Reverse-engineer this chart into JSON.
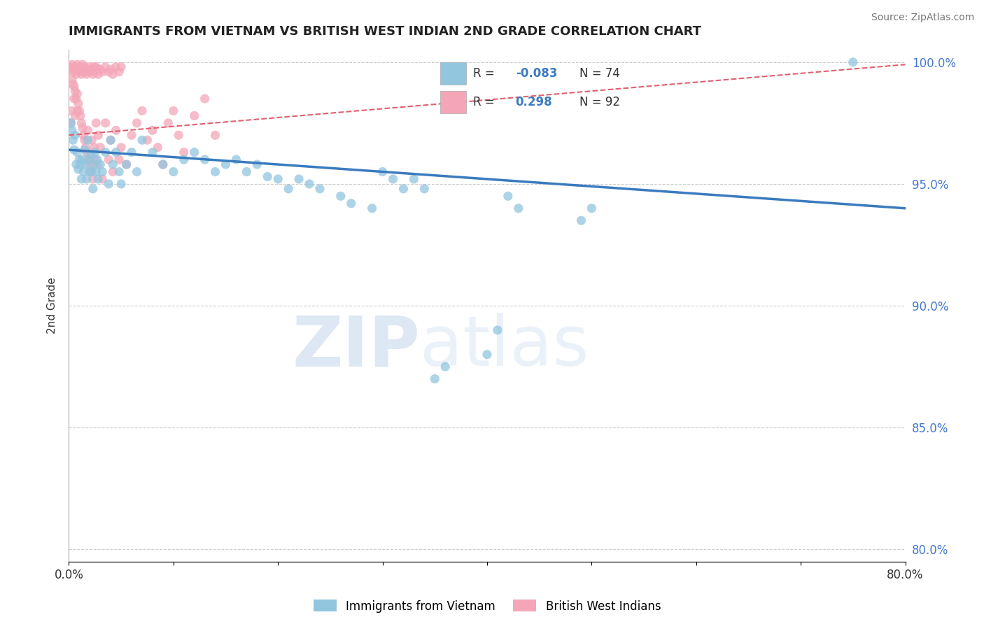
{
  "title": "IMMIGRANTS FROM VIETNAM VS BRITISH WEST INDIAN 2ND GRADE CORRELATION CHART",
  "source_text": "Source: ZipAtlas.com",
  "ylabel": "2nd Grade",
  "xlim": [
    0.0,
    0.8
  ],
  "ylim": [
    0.795,
    1.005
  ],
  "xticks": [
    0.0,
    0.1,
    0.2,
    0.3,
    0.4,
    0.5,
    0.6,
    0.7,
    0.8
  ],
  "yticks": [
    0.8,
    0.85,
    0.9,
    0.95,
    1.0
  ],
  "yticklabels": [
    "80.0%",
    "85.0%",
    "90.0%",
    "95.0%",
    "100.0%"
  ],
  "R_vietnam": -0.083,
  "N_vietnam": 74,
  "R_bwi": 0.298,
  "N_bwi": 92,
  "blue_color": "#92c5de",
  "pink_color": "#f4a6b8",
  "blue_line_color": "#3a7bbf",
  "pink_line_color": "#e06070",
  "legend_label_vietnam": "Immigrants from Vietnam",
  "legend_label_bwi": "British West Indians",
  "watermark_zip": "ZIP",
  "watermark_atlas": "atlas",
  "vietnam_scatter": [
    [
      0.002,
      0.975
    ],
    [
      0.003,
      0.972
    ],
    [
      0.004,
      0.968
    ],
    [
      0.005,
      0.964
    ],
    [
      0.006,
      0.97
    ],
    [
      0.007,
      0.958
    ],
    [
      0.008,
      0.963
    ],
    [
      0.009,
      0.956
    ],
    [
      0.01,
      0.96
    ],
    [
      0.011,
      0.958
    ],
    [
      0.012,
      0.952
    ],
    [
      0.013,
      0.96
    ],
    [
      0.014,
      0.955
    ],
    [
      0.015,
      0.964
    ],
    [
      0.016,
      0.958
    ],
    [
      0.017,
      0.952
    ],
    [
      0.018,
      0.968
    ],
    [
      0.019,
      0.96
    ],
    [
      0.02,
      0.955
    ],
    [
      0.021,
      0.962
    ],
    [
      0.022,
      0.955
    ],
    [
      0.023,
      0.948
    ],
    [
      0.024,
      0.958
    ],
    [
      0.025,
      0.963
    ],
    [
      0.026,
      0.955
    ],
    [
      0.027,
      0.96
    ],
    [
      0.028,
      0.952
    ],
    [
      0.03,
      0.958
    ],
    [
      0.032,
      0.955
    ],
    [
      0.035,
      0.963
    ],
    [
      0.038,
      0.95
    ],
    [
      0.04,
      0.968
    ],
    [
      0.042,
      0.958
    ],
    [
      0.045,
      0.963
    ],
    [
      0.048,
      0.955
    ],
    [
      0.05,
      0.95
    ],
    [
      0.055,
      0.958
    ],
    [
      0.06,
      0.963
    ],
    [
      0.065,
      0.955
    ],
    [
      0.07,
      0.968
    ],
    [
      0.08,
      0.963
    ],
    [
      0.09,
      0.958
    ],
    [
      0.1,
      0.955
    ],
    [
      0.11,
      0.96
    ],
    [
      0.12,
      0.963
    ],
    [
      0.13,
      0.96
    ],
    [
      0.14,
      0.955
    ],
    [
      0.15,
      0.958
    ],
    [
      0.16,
      0.96
    ],
    [
      0.17,
      0.955
    ],
    [
      0.18,
      0.958
    ],
    [
      0.19,
      0.953
    ],
    [
      0.2,
      0.952
    ],
    [
      0.21,
      0.948
    ],
    [
      0.22,
      0.952
    ],
    [
      0.23,
      0.95
    ],
    [
      0.24,
      0.948
    ],
    [
      0.26,
      0.945
    ],
    [
      0.27,
      0.942
    ],
    [
      0.29,
      0.94
    ],
    [
      0.3,
      0.955
    ],
    [
      0.31,
      0.952
    ],
    [
      0.32,
      0.948
    ],
    [
      0.33,
      0.952
    ],
    [
      0.34,
      0.948
    ],
    [
      0.35,
      0.87
    ],
    [
      0.36,
      0.875
    ],
    [
      0.4,
      0.88
    ],
    [
      0.41,
      0.89
    ],
    [
      0.42,
      0.945
    ],
    [
      0.43,
      0.94
    ],
    [
      0.49,
      0.935
    ],
    [
      0.5,
      0.94
    ],
    [
      0.75,
      1.0
    ]
  ],
  "bwi_scatter": [
    [
      0.001,
      0.998
    ],
    [
      0.002,
      0.997
    ],
    [
      0.003,
      0.999
    ],
    [
      0.004,
      0.996
    ],
    [
      0.005,
      0.998
    ],
    [
      0.006,
      0.997
    ],
    [
      0.007,
      0.995
    ],
    [
      0.008,
      0.999
    ],
    [
      0.009,
      0.996
    ],
    [
      0.01,
      0.998
    ],
    [
      0.011,
      0.997
    ],
    [
      0.012,
      0.995
    ],
    [
      0.013,
      0.999
    ],
    [
      0.014,
      0.996
    ],
    [
      0.015,
      0.998
    ],
    [
      0.016,
      0.997
    ],
    [
      0.017,
      0.995
    ],
    [
      0.018,
      0.997
    ],
    [
      0.019,
      0.996
    ],
    [
      0.02,
      0.998
    ],
    [
      0.021,
      0.996
    ],
    [
      0.022,
      0.997
    ],
    [
      0.023,
      0.995
    ],
    [
      0.024,
      0.998
    ],
    [
      0.025,
      0.996
    ],
    [
      0.026,
      0.998
    ],
    [
      0.027,
      0.997
    ],
    [
      0.028,
      0.995
    ],
    [
      0.03,
      0.997
    ],
    [
      0.032,
      0.996
    ],
    [
      0.035,
      0.998
    ],
    [
      0.038,
      0.996
    ],
    [
      0.04,
      0.997
    ],
    [
      0.042,
      0.995
    ],
    [
      0.045,
      0.998
    ],
    [
      0.048,
      0.996
    ],
    [
      0.05,
      0.998
    ],
    [
      0.003,
      0.993
    ],
    [
      0.004,
      0.991
    ],
    [
      0.005,
      0.99
    ],
    [
      0.006,
      0.988
    ],
    [
      0.007,
      0.985
    ],
    [
      0.008,
      0.987
    ],
    [
      0.009,
      0.983
    ],
    [
      0.01,
      0.98
    ],
    [
      0.011,
      0.978
    ],
    [
      0.012,
      0.975
    ],
    [
      0.013,
      0.973
    ],
    [
      0.014,
      0.97
    ],
    [
      0.015,
      0.968
    ],
    [
      0.016,
      0.965
    ],
    [
      0.017,
      0.963
    ],
    [
      0.018,
      0.972
    ],
    [
      0.019,
      0.96
    ],
    [
      0.02,
      0.958
    ],
    [
      0.021,
      0.955
    ],
    [
      0.022,
      0.968
    ],
    [
      0.023,
      0.952
    ],
    [
      0.024,
      0.965
    ],
    [
      0.025,
      0.96
    ],
    [
      0.026,
      0.975
    ],
    [
      0.027,
      0.958
    ],
    [
      0.028,
      0.97
    ],
    [
      0.03,
      0.965
    ],
    [
      0.032,
      0.952
    ],
    [
      0.035,
      0.975
    ],
    [
      0.038,
      0.96
    ],
    [
      0.04,
      0.968
    ],
    [
      0.042,
      0.955
    ],
    [
      0.045,
      0.972
    ],
    [
      0.048,
      0.96
    ],
    [
      0.05,
      0.965
    ],
    [
      0.055,
      0.958
    ],
    [
      0.06,
      0.97
    ],
    [
      0.065,
      0.975
    ],
    [
      0.07,
      0.98
    ],
    [
      0.075,
      0.968
    ],
    [
      0.08,
      0.972
    ],
    [
      0.085,
      0.965
    ],
    [
      0.09,
      0.958
    ],
    [
      0.095,
      0.975
    ],
    [
      0.1,
      0.98
    ],
    [
      0.105,
      0.97
    ],
    [
      0.11,
      0.963
    ],
    [
      0.12,
      0.978
    ],
    [
      0.13,
      0.985
    ],
    [
      0.14,
      0.97
    ],
    [
      0.002,
      0.975
    ],
    [
      0.003,
      0.98
    ],
    [
      0.005,
      0.985
    ],
    [
      0.006,
      0.978
    ],
    [
      0.008,
      0.98
    ]
  ],
  "blue_trend_y0": 0.964,
  "blue_trend_y1": 0.94,
  "pink_trend_y0": 0.97,
  "pink_trend_y1": 0.999
}
